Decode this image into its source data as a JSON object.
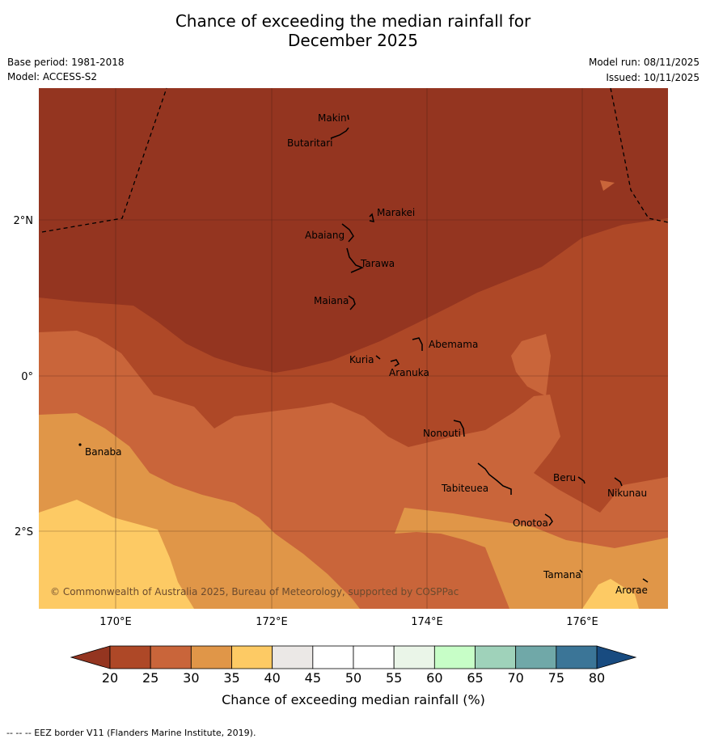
{
  "title_line1": "Chance of exceeding the median rainfall for",
  "title_line2": "December 2025",
  "base_period": "Base period: 1981-2018",
  "model": "Model: ACCESS-S2",
  "model_run": "Model run: 08/11/2025",
  "issued": "Issued: 10/11/2025",
  "lat_labels": [
    "2°N",
    "0°",
    "2°S"
  ],
  "lon_labels": [
    "170°E",
    "172°E",
    "174°E",
    "176°E"
  ],
  "copyright": "© Commonwealth of Australia 2025, Bureau of Meteorology, supported by COSPPac",
  "islands": [
    {
      "name": "Makin",
      "lon": 172.97,
      "lat": 3.17
    },
    {
      "name": "Butaritari",
      "lon": 172.9,
      "lat": 3.0
    },
    {
      "name": "Marakei",
      "lon": 173.3,
      "lat": 1.99
    },
    {
      "name": "Abaiang",
      "lon": 173.0,
      "lat": 1.8
    },
    {
      "name": "Tarawa",
      "lon": 173.1,
      "lat": 1.4
    },
    {
      "name": "Maiana",
      "lon": 173.0,
      "lat": 0.93
    },
    {
      "name": "Abemama",
      "lon": 173.85,
      "lat": 0.38
    },
    {
      "name": "Kuria",
      "lon": 173.4,
      "lat": 0.22
    },
    {
      "name": "Aranuka",
      "lon": 173.6,
      "lat": 0.17
    },
    {
      "name": "Nonouti",
      "lon": 174.4,
      "lat": -0.68
    },
    {
      "name": "Banaba",
      "lon": 169.54,
      "lat": -0.87
    },
    {
      "name": "Tabiteuea",
      "lon": 174.85,
      "lat": -1.3
    },
    {
      "name": "Beru",
      "lon": 175.98,
      "lat": -1.33
    },
    {
      "name": "Nikunau",
      "lon": 176.45,
      "lat": -1.35
    },
    {
      "name": "Onotoa",
      "lon": 175.55,
      "lat": -1.82
    },
    {
      "name": "Tamana",
      "lon": 175.98,
      "lat": -2.5
    },
    {
      "name": "Arorae",
      "lon": 176.82,
      "lat": -2.65
    }
  ],
  "colorbar": {
    "ticks": [
      "20",
      "25",
      "30",
      "35",
      "40",
      "45",
      "50",
      "55",
      "60",
      "65",
      "70",
      "75",
      "80"
    ],
    "colors": [
      "#ae4827",
      "#c9653a",
      "#e09648",
      "#fdca64",
      "#ebe8e6",
      "#ffffff",
      "#ffffff",
      "#eaf5e8",
      "#c7fec7",
      "#9fd2ba",
      "#70a8a8",
      "#3b7597"
    ],
    "under_color": "#943520",
    "over_color": "#184b80",
    "label": "Chance of exceeding median rainfall (%)"
  },
  "footnote": "--  --  -- EEZ border V11 (Flanders Marine Institute, 2019)."
}
